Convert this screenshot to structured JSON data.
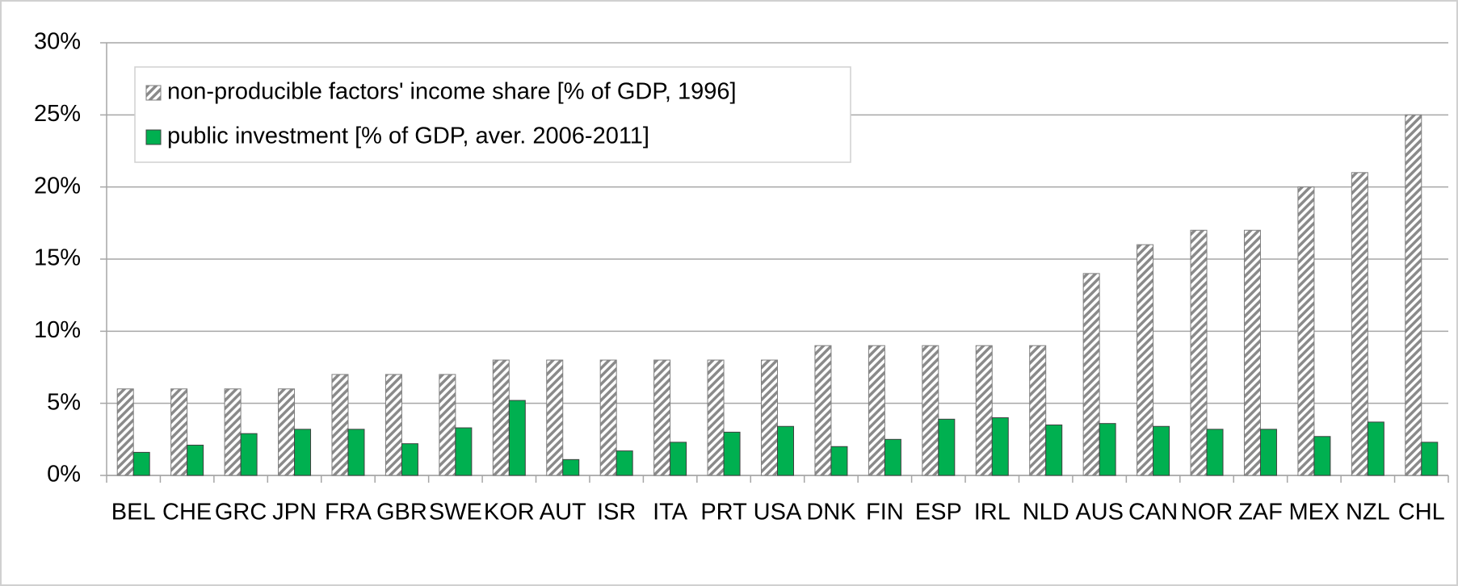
{
  "chart_data": {
    "type": "bar",
    "categories": [
      "BEL",
      "CHE",
      "GRC",
      "JPN",
      "FRA",
      "GBR",
      "SWE",
      "KOR",
      "AUT",
      "ISR",
      "ITA",
      "PRT",
      "USA",
      "DNK",
      "FIN",
      "ESP",
      "IRL",
      "NLD",
      "AUS",
      "CAN",
      "NOR",
      "ZAF",
      "MEX",
      "NZL",
      "CHL"
    ],
    "series": [
      {
        "name": "non-producible factors' income share [% of GDP, 1996]",
        "color": "#7f7f7f",
        "hatch": true,
        "values": [
          6,
          6,
          6,
          6,
          7,
          7,
          7,
          8,
          8,
          8,
          8,
          8,
          8,
          9,
          9,
          9,
          9,
          9,
          14,
          16,
          17,
          17,
          20,
          21,
          25
        ]
      },
      {
        "name": "public investment [% of GDP, aver. 2006-2011]",
        "color": "#00b050",
        "hatch": false,
        "values": [
          1.6,
          2.1,
          2.9,
          3.2,
          3.2,
          2.2,
          3.3,
          5.2,
          1.1,
          1.7,
          2.3,
          3.0,
          3.4,
          2.0,
          2.5,
          3.9,
          4.0,
          3.5,
          3.6,
          3.4,
          3.2,
          3.2,
          2.7,
          3.7,
          2.3
        ]
      }
    ],
    "ylim": [
      0,
      30
    ],
    "yticks": [
      {
        "value": 0,
        "label": "0%"
      },
      {
        "value": 5,
        "label": "5%"
      },
      {
        "value": 10,
        "label": "10%"
      },
      {
        "value": 15,
        "label": "15%"
      },
      {
        "value": 20,
        "label": "20%"
      },
      {
        "value": 25,
        "label": "25%"
      },
      {
        "value": 30,
        "label": "30%"
      }
    ],
    "grid": true,
    "legend": "top-left"
  }
}
